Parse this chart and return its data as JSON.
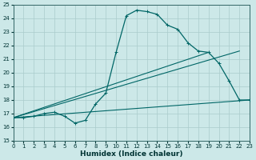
{
  "title": "",
  "xlabel": "Humidex (Indice chaleur)",
  "ylabel": "",
  "bg_color": "#cce8e8",
  "grid_color": "#aacccc",
  "line_color": "#006666",
  "ylim": [
    15,
    25
  ],
  "xlim": [
    0,
    23
  ],
  "yticks": [
    15,
    16,
    17,
    18,
    19,
    20,
    21,
    22,
    23,
    24,
    25
  ],
  "xticks": [
    0,
    1,
    2,
    3,
    4,
    5,
    6,
    7,
    8,
    9,
    10,
    11,
    12,
    13,
    14,
    15,
    16,
    17,
    18,
    19,
    20,
    21,
    22,
    23
  ],
  "series": {
    "main": {
      "x": [
        0,
        1,
        2,
        3,
        4,
        5,
        6,
        7,
        8,
        9,
        10,
        11,
        12,
        13,
        14,
        15,
        16,
        17,
        18,
        19,
        20,
        21,
        22,
        23
      ],
      "y": [
        16.7,
        16.7,
        16.8,
        17.0,
        17.1,
        16.8,
        16.3,
        16.5,
        17.7,
        18.5,
        21.5,
        24.2,
        24.6,
        24.5,
        24.3,
        23.5,
        23.2,
        22.2,
        21.6,
        21.5,
        20.7,
        19.4,
        18.0,
        18.0
      ]
    },
    "flat_line": {
      "x": [
        0,
        23
      ],
      "y": [
        16.7,
        18.0
      ]
    },
    "mid_line": {
      "x": [
        0,
        22
      ],
      "y": [
        16.7,
        21.6
      ]
    },
    "steep_line": {
      "x": [
        0,
        19
      ],
      "y": [
        16.7,
        21.5
      ]
    }
  }
}
